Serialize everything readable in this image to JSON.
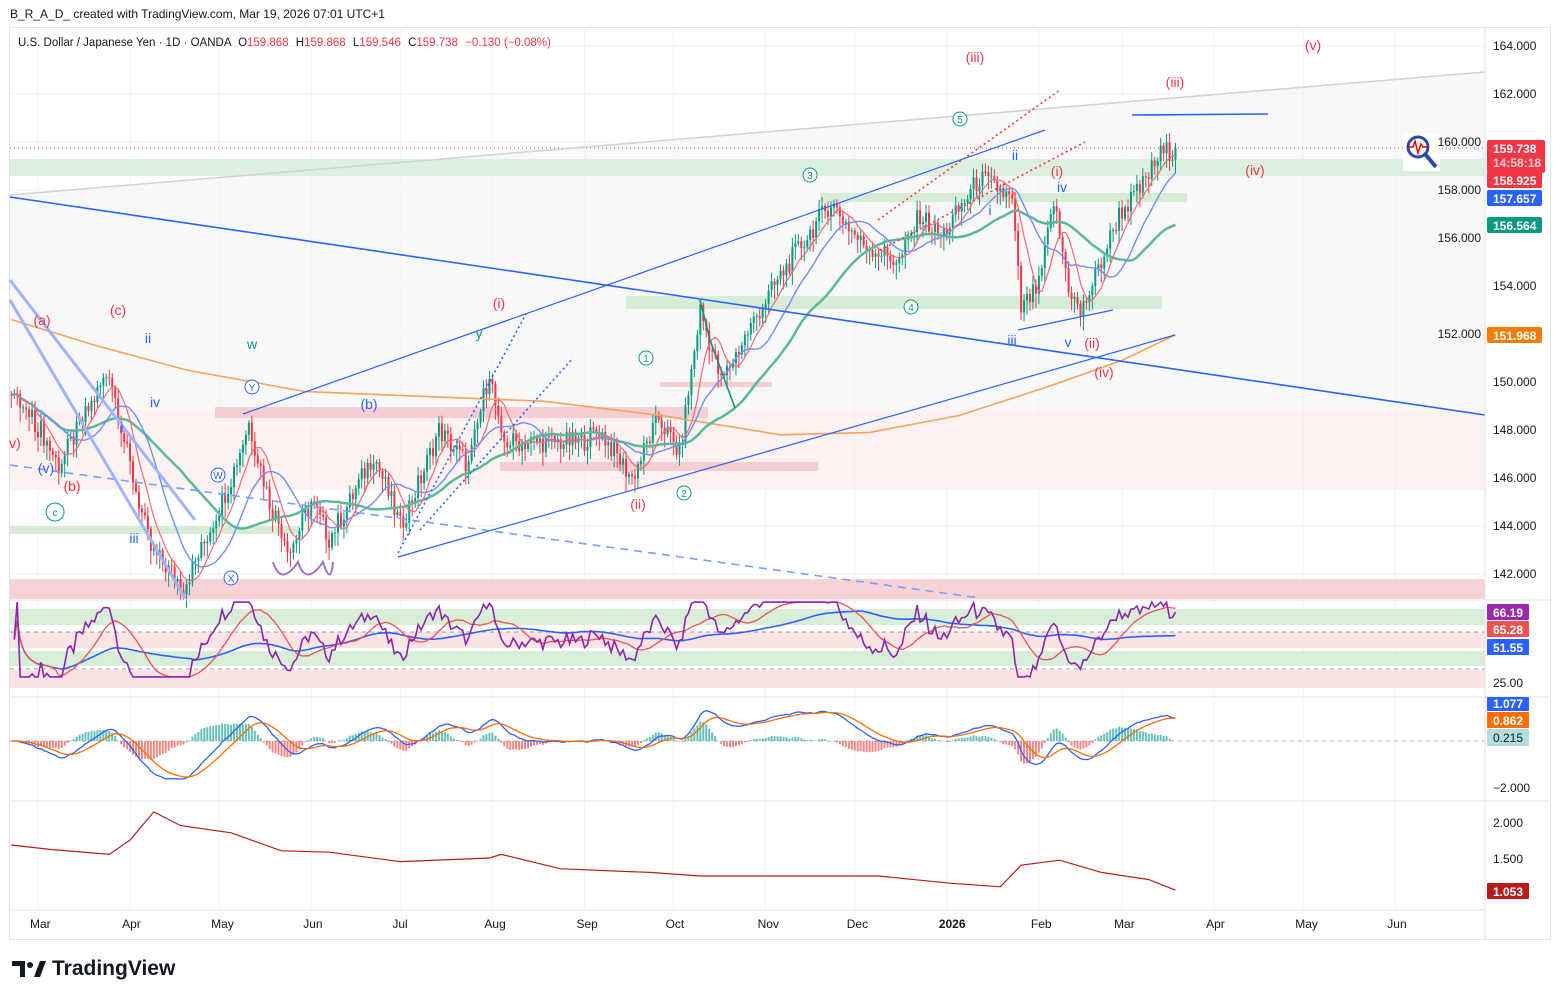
{
  "credit": "B_R_A_D_ created with TradingView.com, Mar 19, 2026 07:01 UTC+1",
  "legend": {
    "symbol": "U.S. Dollar / Japanese Yen · 1D · OANDA",
    "o_label": "O",
    "o": "159.868",
    "h_label": "H",
    "h": "159.868",
    "l_label": "L",
    "l": "159.546",
    "c_label": "C",
    "c": "159.738",
    "change": "−0.130 (−0.08%)"
  },
  "brand": "TradingView",
  "colors": {
    "up": "#089981",
    "down": "#f23645",
    "blue": "#2962ff",
    "orange": "#f57c00",
    "teal": "#089981",
    "purple": "#9c27b0"
  },
  "price_tags": {
    "last": "159.738",
    "countdown": "14:58:18",
    "ma_fast": "158.925",
    "ma_mid": "157.657",
    "ma_slow": "156.564",
    "ma_long": "151.968"
  },
  "rsi_tags": {
    "rsi": "66.19",
    "ma": "65.28",
    "base": "51.55",
    "axis": "25.00"
  },
  "macd_tags": {
    "macd": "1.077",
    "signal": "0.862",
    "hist": "0.215",
    "axis": "−2.000"
  },
  "atr_tags": {
    "value": "1.053",
    "axis": [
      "2.000",
      "1.500"
    ]
  },
  "wave_labels": [
    "(iii)",
    "(v)",
    "(iii)",
    "(iv)",
    "(i)",
    "(ii)",
    "(iv)",
    "(i)",
    "(ii)",
    "(c)",
    "(a)",
    "(b)",
    "v)",
    "(b)",
    "(v)",
    "ii",
    "iv",
    "i",
    "iii",
    "ii",
    "iv",
    "i",
    "iii",
    "v",
    "w",
    "y",
    "5",
    "3",
    "1",
    "2",
    "4",
    "c",
    "Y",
    "W",
    "X"
  ],
  "chart_data": {
    "type": "line",
    "title": "U.S. Dollar / Japanese Yen · 1D · OANDA",
    "x_unit": "days since 2025-03-01",
    "xticks": [
      "Mar",
      "Apr",
      "May",
      "Jun",
      "Jul",
      "Aug",
      "Sep",
      "Oct",
      "Nov",
      "Dec",
      "2026",
      "Feb",
      "Mar",
      "Apr",
      "May",
      "Jun"
    ],
    "yticks": [
      "164.000",
      "162.000",
      "160.000",
      "158.000",
      "156.000",
      "154.000",
      "152.000",
      "150.000",
      "148.000",
      "146.000",
      "144.000",
      "142.000"
    ],
    "ylim": [
      141,
      165
    ],
    "price": [
      [
        -9,
        149.5
      ],
      [
        1,
        148
      ],
      [
        7,
        146.5
      ],
      [
        24,
        150.5
      ],
      [
        30,
        147
      ],
      [
        38,
        143
      ],
      [
        49,
        141.5
      ],
      [
        55,
        143
      ],
      [
        65,
        146
      ],
      [
        71,
        148.3
      ],
      [
        78,
        145
      ],
      [
        85,
        143
      ],
      [
        92,
        145
      ],
      [
        98,
        143.5
      ],
      [
        105,
        145
      ],
      [
        113,
        147
      ],
      [
        122,
        144
      ],
      [
        129,
        146
      ],
      [
        135,
        148
      ],
      [
        145,
        146.5
      ],
      [
        152,
        150.5
      ],
      [
        156,
        147.5
      ],
      [
        166,
        147.5
      ],
      [
        183,
        147.5
      ],
      [
        189,
        148
      ],
      [
        200,
        146
      ],
      [
        209,
        148.5
      ],
      [
        216,
        147
      ],
      [
        223,
        153
      ],
      [
        230,
        150
      ],
      [
        243,
        153
      ],
      [
        253,
        155
      ],
      [
        267,
        157.5
      ],
      [
        277,
        155.8
      ],
      [
        290,
        155
      ],
      [
        297,
        157
      ],
      [
        304,
        156
      ],
      [
        317,
        158.5
      ],
      [
        324,
        158
      ],
      [
        328,
        157.5
      ],
      [
        331,
        153
      ],
      [
        337,
        154
      ],
      [
        342,
        157.5
      ],
      [
        347,
        154
      ],
      [
        351,
        152.8
      ],
      [
        358,
        155
      ],
      [
        364,
        157
      ],
      [
        371,
        158
      ],
      [
        378,
        159.5
      ],
      [
        383,
        159.738
      ]
    ],
    "ma_long": [
      [
        -9,
        152.6
      ],
      [
        20,
        151.5
      ],
      [
        50,
        150.5
      ],
      [
        90,
        149.6
      ],
      [
        130,
        149.4
      ],
      [
        170,
        149.2
      ],
      [
        210,
        148.6
      ],
      [
        250,
        147.8
      ],
      [
        280,
        147.9
      ],
      [
        310,
        148.6
      ],
      [
        340,
        149.8
      ],
      [
        365,
        150.9
      ],
      [
        383,
        151.968
      ]
    ],
    "atr": [
      [
        -9,
        1.68
      ],
      [
        4,
        1.62
      ],
      [
        24,
        1.55
      ],
      [
        31,
        1.75
      ],
      [
        39,
        2.14
      ],
      [
        48,
        1.95
      ],
      [
        65,
        1.85
      ],
      [
        82,
        1.6
      ],
      [
        98,
        1.58
      ],
      [
        122,
        1.45
      ],
      [
        152,
        1.5
      ],
      [
        156,
        1.55
      ],
      [
        176,
        1.35
      ],
      [
        206,
        1.3
      ],
      [
        223,
        1.25
      ],
      [
        256,
        1.25
      ],
      [
        283,
        1.25
      ],
      [
        307,
        1.15
      ],
      [
        324,
        1.1
      ],
      [
        331,
        1.4
      ],
      [
        344,
        1.47
      ],
      [
        358,
        1.3
      ],
      [
        374,
        1.2
      ],
      [
        383,
        1.053
      ]
    ],
    "atr_ylim": [
      0.9,
      2.2
    ]
  }
}
